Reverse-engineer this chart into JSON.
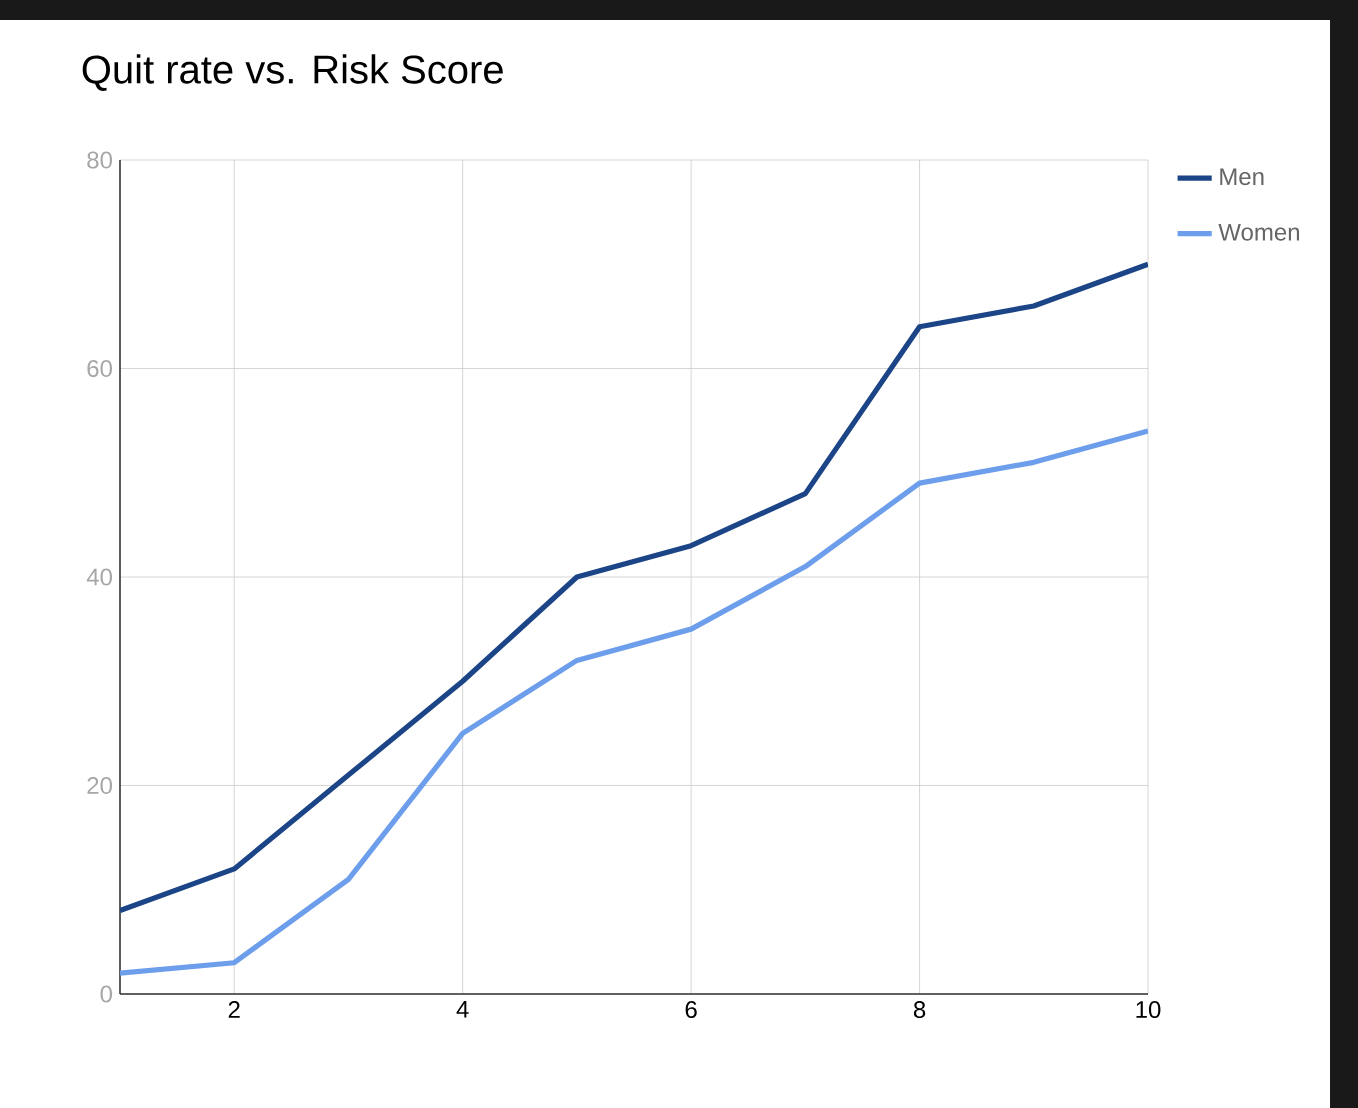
{
  "chart_data": {
    "type": "line",
    "title": "Quit rate vs. Risk Score",
    "x": [
      1,
      2,
      3,
      4,
      5,
      6,
      7,
      8,
      9,
      10
    ],
    "series": [
      {
        "name": "Men",
        "color": "#1c4587",
        "values": [
          8,
          12,
          21,
          30,
          40,
          43,
          48,
          64,
          66,
          70
        ]
      },
      {
        "name": "Women",
        "color": "#6d9eeb",
        "values": [
          2,
          3,
          11,
          25,
          32,
          35,
          41,
          49,
          51,
          54
        ]
      }
    ],
    "xlim": [
      1,
      10
    ],
    "xticks": [
      2,
      4,
      6,
      8,
      10
    ],
    "ylim": [
      0,
      80
    ],
    "yticks": [
      0,
      20,
      40,
      60,
      80
    ],
    "grid": true,
    "legend": "top right",
    "marker": "none",
    "line_style": "solid"
  }
}
